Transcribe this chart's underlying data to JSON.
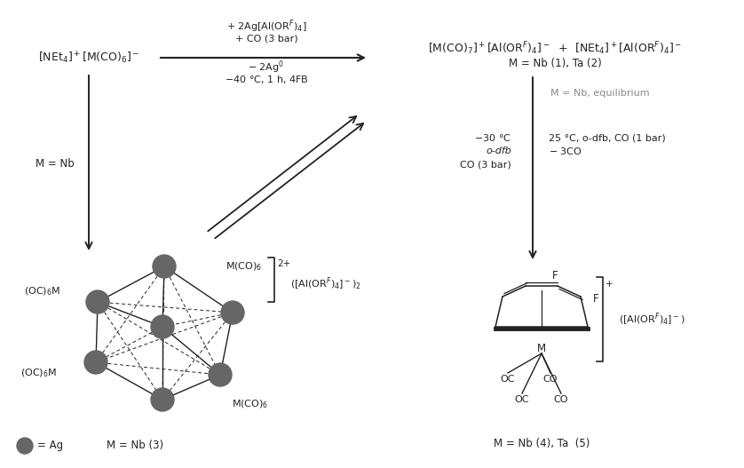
{
  "bg_color": "#ffffff",
  "text_color": "#222222",
  "gray_color": "#888888",
  "node_color": "#666666",
  "figsize": [
    8.38,
    5.27
  ],
  "dpi": 100,
  "top_left_formula": "[NEt$_4$]$^+$[M(CO)$_6$]$^-$",
  "top_right_line1": "[M(CO)$_7$]$^+$[Al(OR$^F$)$_4$]$^-$  +  [NEt$_4$]$^+$[Al(OR$^F$)$_4$]$^-$",
  "top_right_line2": "M = Nb (1), Ta (2)",
  "arrow_above1": "+ 2Ag[Al(OR$^F$)$_4$]",
  "arrow_above2": "+ CO (3 bar)",
  "arrow_below1": "$-$ 2Ag$^0$",
  "arrow_below2": "$-$40 °C, 1 h, 4FB",
  "left_label": "M = Nb",
  "right_top_note": "M = Nb, equilibrium",
  "right_left1": "$-$30 °C",
  "right_left2": "o-dfb",
  "right_left3": "CO (3 bar)",
  "right_right1": "25 °C, o-dfb, CO (1 bar)",
  "right_right2": "$-$ 3CO",
  "cluster_labels": {
    "oc6m_top_left": "(OC)$_6$M",
    "mco6_top_right": "M(CO)$_6$",
    "oc6m_bot_left": "(OC)$_6$M",
    "mco6_bot_right": "M(CO)$_6$"
  },
  "bracket_left_charge": "2+",
  "bracket_left_label": "([Al(OR$^F$)$_4$]$^-$)$_2$",
  "bracket_right_charge": "+",
  "bracket_right_label": "([Al(OR$^F$)$_4$]$^-$)",
  "legend_ag": "= Ag",
  "legend_m": "M = Nb (3)",
  "bottom_right_label": "M = Nb (4), Ta  (5)"
}
